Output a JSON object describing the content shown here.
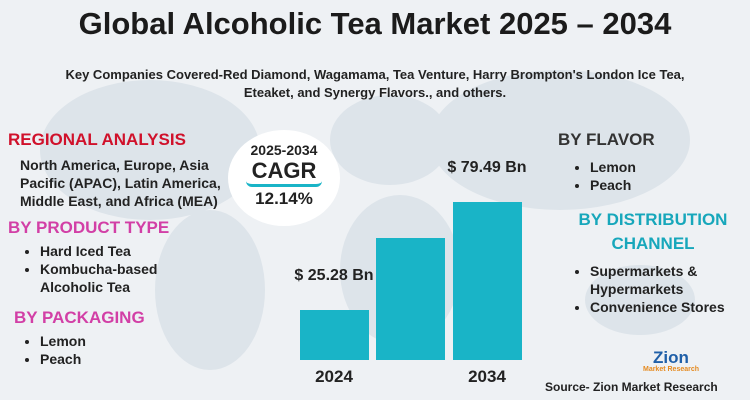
{
  "title": "Global Alcoholic Tea Market 2025 – 2034",
  "subtitle": "Key Companies Covered-Red Diamond, Wagamama, Tea Venture, Harry Brompton's London Ice Tea, Eteaket, and Synergy Flavors., and others.",
  "cagr": {
    "period": "2025-2034",
    "label": "CAGR",
    "value": "12.14%"
  },
  "left": [
    {
      "heading": "REGIONAL ANALYSIS",
      "color": "#d0112b",
      "text": "North America, Europe, Asia Pacific (APAC), Latin America, Middle East, and Africa (MEA)"
    },
    {
      "heading": "BY PRODUCT TYPE",
      "color": "#d23fa6",
      "items": [
        "Hard Iced Tea",
        "Kombucha-based Alcoholic Tea"
      ]
    },
    {
      "heading": "BY PACKAGING",
      "color": "#d23fa6",
      "items": [
        "Lemon",
        "Peach"
      ]
    }
  ],
  "right": [
    {
      "heading": "BY FLAVOR",
      "color": "#333333",
      "items": [
        "Lemon",
        "Peach"
      ]
    },
    {
      "heading": "BY DISTRIBUTION CHANNEL",
      "color": "#17a7bb",
      "items": [
        "Supermarkets & Hypermarkets",
        "Convenience Stores"
      ]
    }
  ],
  "logo": {
    "name": "Zion",
    "tagline": "Market Research"
  },
  "source": "Source- Zion Market Research",
  "chart_data": {
    "type": "bar",
    "categories": [
      "2024",
      null,
      "2034"
    ],
    "values": [
      25.28,
      61.2,
      79.49
    ],
    "value_labels": [
      "$ 25.28 Bn",
      null,
      "$ 79.49 Bn"
    ],
    "color": "#19b4c7"
  }
}
